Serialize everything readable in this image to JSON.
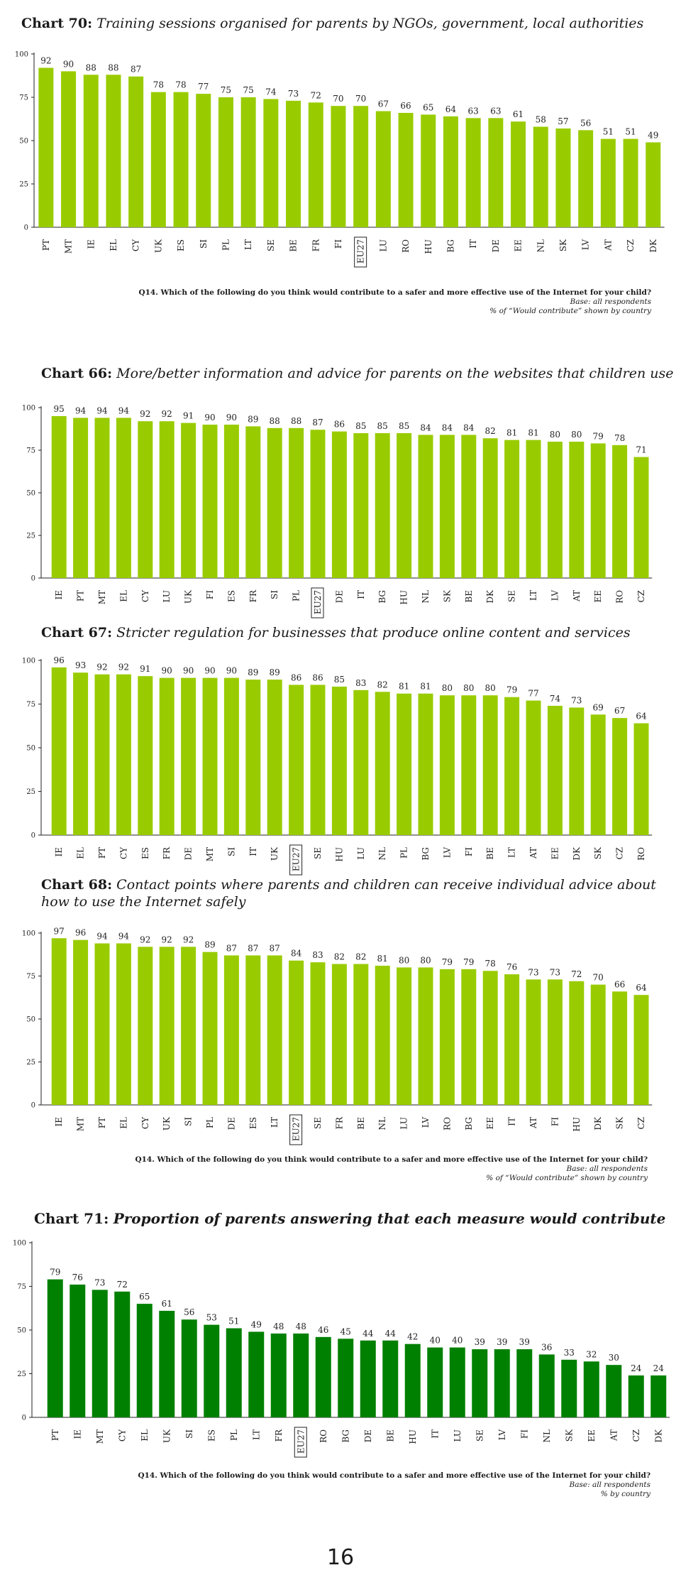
{
  "page_number": "16",
  "footnote": {
    "question": "Q14. Which of the following do you think would contribute to a safer and more effective use of the Internet for your child?",
    "base": "Base: all respondents",
    "would_contribute": "% of “Would contribute” shown by country",
    "by_country": "% by country"
  },
  "chart_data": [
    {
      "type": "bar",
      "label": "Chart 70:",
      "title": "Training sessions organised for parents by NGOs, government, local authorities",
      "title_bold": false,
      "color": "#99cc00",
      "highlight": "EU27",
      "ylim": [
        0,
        100
      ],
      "yticks": [
        0,
        25,
        50,
        75,
        100
      ],
      "categories": [
        "PT",
        "MT",
        "IE",
        "EL",
        "CY",
        "UK",
        "ES",
        "SI",
        "PL",
        "LT",
        "SE",
        "BE",
        "FR",
        "FI",
        "EU27",
        "LU",
        "RO",
        "HU",
        "BG",
        "IT",
        "DE",
        "EE",
        "NL",
        "SK",
        "LV",
        "AT",
        "CZ",
        "DK"
      ],
      "values": [
        92,
        90,
        88,
        88,
        87,
        78,
        78,
        77,
        75,
        75,
        74,
        73,
        72,
        70,
        70,
        67,
        66,
        65,
        64,
        63,
        63,
        61,
        58,
        57,
        56,
        51,
        51,
        49
      ]
    },
    {
      "type": "bar",
      "label": "Chart 66:",
      "title": "More/better information and advice for parents on the websites that children use",
      "title_bold": false,
      "color": "#99cc00",
      "highlight": "EU27",
      "ylim": [
        0,
        100
      ],
      "yticks": [
        0,
        25,
        50,
        75,
        100
      ],
      "categories": [
        "IE",
        "PT",
        "MT",
        "EL",
        "CY",
        "LU",
        "UK",
        "FI",
        "ES",
        "FR",
        "SI",
        "PL",
        "EU27",
        "DE",
        "IT",
        "BG",
        "HU",
        "NL",
        "SK",
        "BE",
        "DK",
        "SE",
        "LT",
        "LV",
        "AT",
        "EE",
        "RO",
        "CZ"
      ],
      "values": [
        95,
        94,
        94,
        94,
        92,
        92,
        91,
        90,
        90,
        89,
        88,
        88,
        87,
        86,
        85,
        85,
        85,
        84,
        84,
        84,
        82,
        81,
        81,
        80,
        80,
        79,
        78,
        71
      ]
    },
    {
      "type": "bar",
      "label": "Chart 67:",
      "title": "Stricter regulation for businesses that produce online content and services",
      "title_bold": false,
      "color": "#99cc00",
      "highlight": "EU27",
      "ylim": [
        0,
        100
      ],
      "yticks": [
        0,
        25,
        50,
        75,
        100
      ],
      "categories": [
        "IE",
        "EL",
        "PT",
        "CY",
        "ES",
        "FR",
        "DE",
        "MT",
        "SI",
        "IT",
        "UK",
        "EU27",
        "SE",
        "HU",
        "LU",
        "NL",
        "PL",
        "BG",
        "LV",
        "FI",
        "BE",
        "LT",
        "AT",
        "EE",
        "DK",
        "SK",
        "CZ",
        "RO"
      ],
      "values": [
        96,
        93,
        92,
        92,
        91,
        90,
        90,
        90,
        90,
        89,
        89,
        86,
        86,
        85,
        83,
        82,
        81,
        81,
        80,
        80,
        80,
        79,
        77,
        74,
        73,
        69,
        67,
        64
      ]
    },
    {
      "type": "bar",
      "label": "Chart 68:",
      "title": "Contact points where parents and children can receive individual advice about",
      "title_line2": "how to use the Internet safely",
      "title_bold": false,
      "color": "#99cc00",
      "highlight": "EU27",
      "ylim": [
        0,
        100
      ],
      "yticks": [
        0,
        25,
        50,
        75,
        100
      ],
      "categories": [
        "IE",
        "MT",
        "PT",
        "EL",
        "CY",
        "UK",
        "SI",
        "PL",
        "DE",
        "ES",
        "LT",
        "EU27",
        "SE",
        "FR",
        "BE",
        "NL",
        "LU",
        "LV",
        "RO",
        "BG",
        "EE",
        "IT",
        "AT",
        "FI",
        "HU",
        "DK",
        "SK",
        "CZ"
      ],
      "values": [
        97,
        96,
        94,
        94,
        92,
        92,
        92,
        89,
        87,
        87,
        87,
        84,
        83,
        82,
        82,
        81,
        80,
        80,
        79,
        79,
        78,
        76,
        73,
        73,
        72,
        70,
        66,
        64
      ]
    },
    {
      "type": "bar",
      "label": "Chart 71:",
      "title": "Proportion of parents answering that each measure would contribute",
      "title_bold": true,
      "color": "#008000",
      "highlight": "EU27",
      "ylim": [
        0,
        100
      ],
      "yticks": [
        0,
        25,
        50,
        75,
        100
      ],
      "categories": [
        "PT",
        "IE",
        "MT",
        "CY",
        "EL",
        "UK",
        "SI",
        "ES",
        "PL",
        "LT",
        "FR",
        "EU27",
        "RO",
        "BG",
        "DE",
        "BE",
        "HU",
        "IT",
        "LU",
        "SE",
        "LV",
        "FI",
        "NL",
        "SK",
        "EE",
        "AT",
        "CZ",
        "DK"
      ],
      "values": [
        79,
        76,
        73,
        72,
        65,
        61,
        56,
        53,
        51,
        49,
        48,
        48,
        46,
        45,
        44,
        44,
        42,
        40,
        40,
        39,
        39,
        39,
        36,
        33,
        32,
        30,
        24,
        24
      ]
    }
  ]
}
